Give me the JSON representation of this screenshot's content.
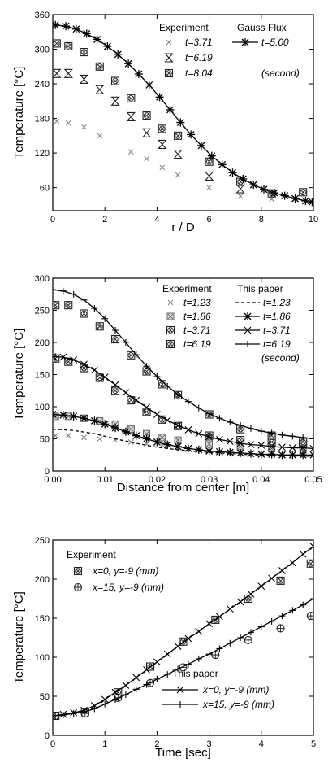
{
  "chart_data": [
    {
      "type": "scatter",
      "xlabel": "r / D",
      "ylabel": "Temperature [°C]",
      "xlim": [
        0,
        10
      ],
      "ylim": [
        20,
        360
      ],
      "xticks": [
        0,
        2,
        4,
        6,
        8,
        10
      ],
      "yticks": [
        60,
        120,
        180,
        240,
        300,
        360
      ],
      "legend": {
        "header_left": "Experiment",
        "header_right": "Gauss Flux",
        "unit_note": "(second)",
        "placement": "top-right"
      },
      "series": [
        {
          "name": "t=3.71",
          "kind": "experiment",
          "marker": "x-light",
          "x": [
            0.15,
            0.6,
            1.2,
            1.8,
            3.0,
            3.6,
            4.2,
            4.8,
            6.0,
            7.2,
            8.4
          ],
          "y": [
            175,
            172,
            165,
            150,
            122,
            110,
            95,
            82,
            60,
            45,
            40
          ]
        },
        {
          "name": "t=6.19",
          "kind": "experiment",
          "marker": "hourglass",
          "x": [
            0.15,
            0.6,
            1.2,
            1.8,
            2.4,
            3.0,
            3.6,
            4.2,
            4.8,
            6.0,
            7.2
          ],
          "y": [
            258,
            258,
            248,
            230,
            210,
            183,
            155,
            135,
            118,
            80,
            58
          ]
        },
        {
          "name": "t=8.04",
          "kind": "experiment",
          "marker": "circle-cross",
          "x": [
            0.15,
            0.6,
            1.2,
            1.8,
            2.4,
            3.0,
            3.6,
            4.2,
            4.8,
            6.0,
            7.2,
            8.4,
            9.6
          ],
          "y": [
            310,
            305,
            295,
            270,
            245,
            215,
            185,
            162,
            150,
            105,
            70,
            50,
            52
          ]
        },
        {
          "name": "t=5.00",
          "kind": "model",
          "marker": "asterisk",
          "x": [
            0.1,
            0.5,
            0.9,
            1.3,
            1.7,
            2.1,
            2.5,
            2.9,
            3.3,
            3.7,
            4.1,
            4.5,
            4.9,
            5.3,
            5.7,
            6.1,
            6.5,
            6.9,
            7.3,
            7.7,
            8.1,
            8.5,
            8.9,
            9.3,
            9.7,
            9.95
          ],
          "y": [
            342,
            340,
            335,
            327,
            317,
            305,
            291,
            275,
            257,
            238,
            217,
            195,
            173,
            152,
            133,
            115,
            100,
            86,
            75,
            65,
            57,
            51,
            46,
            41,
            37,
            35
          ]
        }
      ]
    },
    {
      "type": "line",
      "xlabel": "Distance from center [m]",
      "ylabel": "Temperature [°C]",
      "xlim": [
        0,
        0.05
      ],
      "ylim": [
        0,
        300
      ],
      "xticks": [
        "0.00",
        "0.01",
        "0.02",
        "0.03",
        "0.04",
        "0.05"
      ],
      "yticks": [
        0,
        50,
        100,
        150,
        200,
        250,
        300
      ],
      "legend": {
        "header_left": "Experiment",
        "header_right": "This paper",
        "unit_note": "(second)",
        "placement": "top-right"
      },
      "series": [
        {
          "name": "t=1.23",
          "kind": "experiment",
          "marker": "x-light",
          "x": [
            0.0005,
            0.003,
            0.006,
            0.009,
            0.012,
            0.015,
            0.018,
            0.021,
            0.024,
            0.03,
            0.036,
            0.042,
            0.048
          ],
          "y": [
            55,
            55,
            52,
            50,
            48,
            45,
            42,
            40,
            38,
            35,
            32,
            30,
            30
          ]
        },
        {
          "name": "t=1.86",
          "kind": "experiment",
          "marker": "square-cross",
          "x": [
            0.0005,
            0.003,
            0.006,
            0.009,
            0.012,
            0.015,
            0.018,
            0.021,
            0.024,
            0.03,
            0.036,
            0.042,
            0.048
          ],
          "y": [
            85,
            85,
            82,
            78,
            73,
            65,
            58,
            52,
            48,
            42,
            38,
            35,
            33
          ]
        },
        {
          "name": "t=3.71",
          "kind": "experiment",
          "marker": "circle-x",
          "x": [
            0.0005,
            0.003,
            0.006,
            0.009,
            0.012,
            0.015,
            0.018,
            0.021,
            0.024,
            0.03,
            0.036,
            0.042,
            0.048
          ],
          "y": [
            175,
            170,
            160,
            145,
            125,
            110,
            92,
            80,
            70,
            55,
            48,
            45,
            42
          ]
        },
        {
          "name": "t=6.19",
          "kind": "experiment",
          "marker": "circle-cross",
          "x": [
            0.0005,
            0.003,
            0.006,
            0.009,
            0.012,
            0.015,
            0.018,
            0.021,
            0.024,
            0.03,
            0.036,
            0.042,
            0.048
          ],
          "y": [
            258,
            258,
            245,
            225,
            205,
            180,
            155,
            135,
            118,
            88,
            65,
            55,
            45
          ]
        },
        {
          "name": "t=1.23",
          "kind": "model",
          "marker": "none",
          "dash": "4,3",
          "x": [
            0,
            0.004,
            0.008,
            0.012,
            0.016,
            0.02,
            0.024,
            0.028,
            0.032,
            0.036,
            0.04,
            0.044,
            0.048,
            0.05
          ],
          "y": [
            65,
            63,
            58,
            50,
            43,
            37,
            33,
            30,
            28,
            26,
            25,
            24,
            23,
            23
          ]
        },
        {
          "name": "t=1.86",
          "kind": "model",
          "marker": "asterisk",
          "x": [
            0,
            0.002,
            0.004,
            0.006,
            0.008,
            0.01,
            0.012,
            0.014,
            0.016,
            0.018,
            0.02,
            0.022,
            0.024,
            0.026,
            0.028,
            0.03,
            0.032,
            0.034,
            0.036,
            0.038,
            0.04,
            0.042,
            0.044,
            0.046,
            0.048,
            0.05
          ],
          "y": [
            88,
            87,
            85,
            82,
            78,
            73,
            67,
            61,
            55,
            50,
            45,
            41,
            38,
            35,
            33,
            31,
            30,
            29,
            28,
            27,
            26,
            26,
            25,
            25,
            25,
            25
          ]
        },
        {
          "name": "t=3.71",
          "kind": "model",
          "marker": "x",
          "x": [
            0,
            0.002,
            0.004,
            0.006,
            0.008,
            0.01,
            0.012,
            0.014,
            0.016,
            0.018,
            0.02,
            0.022,
            0.024,
            0.026,
            0.028,
            0.03,
            0.032,
            0.034,
            0.036,
            0.038,
            0.04,
            0.042,
            0.044,
            0.046,
            0.048,
            0.05
          ],
          "y": [
            178,
            177,
            173,
            166,
            157,
            146,
            134,
            122,
            110,
            99,
            88,
            79,
            71,
            64,
            58,
            53,
            49,
            46,
            43,
            41,
            40,
            38,
            37,
            36,
            36,
            35
          ]
        },
        {
          "name": "t=6.19",
          "kind": "model",
          "marker": "plus",
          "x": [
            0,
            0.002,
            0.004,
            0.006,
            0.008,
            0.01,
            0.012,
            0.014,
            0.016,
            0.018,
            0.02,
            0.022,
            0.024,
            0.026,
            0.028,
            0.03,
            0.032,
            0.034,
            0.036,
            0.038,
            0.04,
            0.042,
            0.044,
            0.046,
            0.048,
            0.05
          ],
          "y": [
            282,
            280,
            275,
            266,
            253,
            237,
            219,
            200,
            181,
            163,
            147,
            132,
            119,
            108,
            98,
            89,
            82,
            76,
            71,
            66,
            62,
            59,
            56,
            54,
            52,
            50
          ]
        }
      ]
    },
    {
      "type": "line",
      "xlabel": "Time [sec]",
      "ylabel": "Temperature [°C]",
      "xlim": [
        0,
        5
      ],
      "ylim": [
        0,
        250
      ],
      "xticks": [
        0,
        1,
        2,
        3,
        4,
        5
      ],
      "yticks": [
        0,
        50,
        100,
        150,
        200,
        250
      ],
      "legend": {
        "experiment_header": "Experiment",
        "model_header": "This paper",
        "placement": "top-left / bottom-right"
      },
      "series": [
        {
          "name": "x=0, y=-9 (mm)",
          "kind": "experiment",
          "marker": "circle-x",
          "x": [
            0.05,
            0.62,
            1.25,
            1.87,
            2.5,
            3.12,
            3.75,
            4.37,
            4.95
          ],
          "y": [
            25,
            30,
            55,
            88,
            120,
            148,
            175,
            198,
            220
          ]
        },
        {
          "name": "x=15, y=-9 (mm)",
          "kind": "experiment",
          "marker": "circle-plus",
          "x": [
            0.05,
            0.62,
            1.25,
            1.87,
            2.5,
            3.12,
            3.75,
            4.37,
            4.95
          ],
          "y": [
            25,
            28,
            48,
            67,
            87,
            103,
            122,
            137,
            153
          ]
        },
        {
          "name": "x=0, y=-9 (mm)",
          "kind": "model",
          "marker": "x",
          "x": [
            0,
            0.2,
            0.4,
            0.6,
            0.8,
            1.0,
            1.2,
            1.4,
            1.6,
            1.8,
            2.0,
            2.2,
            2.4,
            2.6,
            2.8,
            3.0,
            3.2,
            3.4,
            3.6,
            3.8,
            4.0,
            4.2,
            4.4,
            4.6,
            4.8,
            5.0
          ],
          "y": [
            25,
            27,
            29,
            32,
            38,
            46,
            55,
            64,
            74,
            84,
            94,
            104,
            114,
            124,
            133,
            143,
            152,
            162,
            171,
            181,
            191,
            201,
            211,
            221,
            232,
            242
          ]
        },
        {
          "name": "x=15, y=-9 (mm)",
          "kind": "model",
          "marker": "plus",
          "x": [
            0,
            0.2,
            0.4,
            0.6,
            0.8,
            1.0,
            1.2,
            1.4,
            1.6,
            1.8,
            2.0,
            2.2,
            2.4,
            2.6,
            2.8,
            3.0,
            3.2,
            3.4,
            3.6,
            3.8,
            4.0,
            4.2,
            4.4,
            4.6,
            4.8,
            5.0
          ],
          "y": [
            25,
            26,
            28,
            30,
            34,
            40,
            46,
            52,
            59,
            65,
            72,
            78,
            85,
            91,
            98,
            104,
            111,
            118,
            125,
            132,
            139,
            146,
            153,
            160,
            167,
            175
          ]
        }
      ]
    }
  ]
}
